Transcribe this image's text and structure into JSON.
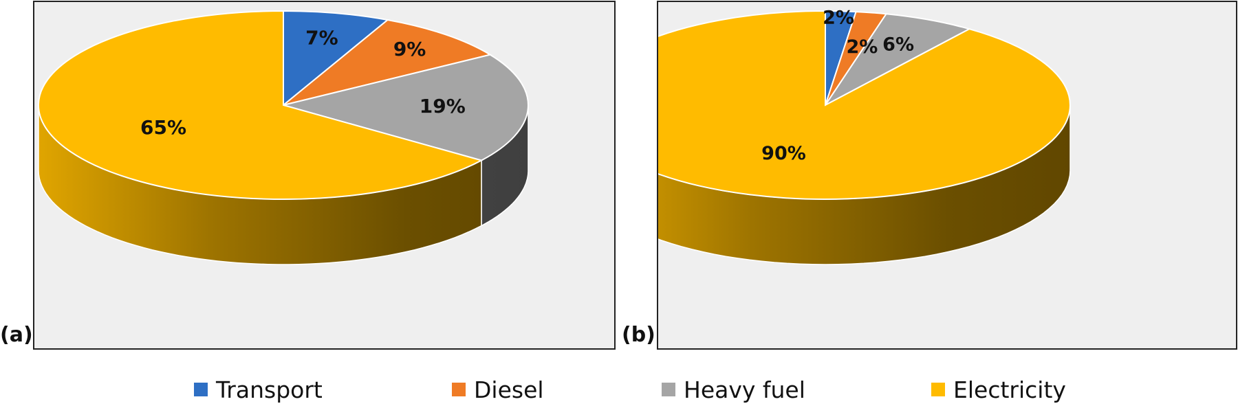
{
  "colors": {
    "Transport": "#2e6fc4",
    "Diesel": "#ef7b25",
    "Heavy fuel": "#a5a5a5",
    "Electricity": "#ffbb00",
    "background": "#efefef"
  },
  "panels": [
    {
      "tag": "(a)"
    },
    {
      "tag": "(b)"
    }
  ],
  "legend": {
    "items": [
      {
        "label": "Transport",
        "color": "#2e6fc4"
      },
      {
        "label": "Diesel",
        "color": "#ef7b25"
      },
      {
        "label": "Heavy fuel",
        "color": "#a5a5a5"
      },
      {
        "label": "Electricity",
        "color": "#ffbb00"
      }
    ],
    "placement": "bottom"
  },
  "chart_data": [
    {
      "type": "pie",
      "style": "3d",
      "panel": "(a)",
      "categories": [
        "Transport",
        "Diesel",
        "Heavy fuel",
        "Electricity"
      ],
      "values": [
        7,
        9,
        19,
        65
      ],
      "data_labels": [
        "7%",
        "9%",
        "19%",
        "65%"
      ],
      "title": ""
    },
    {
      "type": "pie",
      "style": "3d",
      "panel": "(b)",
      "categories": [
        "Transport",
        "Diesel",
        "Heavy fuel",
        "Electricity"
      ],
      "values": [
        2,
        2,
        6,
        90
      ],
      "data_labels": [
        "2%",
        "2%",
        "6%",
        "90%"
      ],
      "title": ""
    }
  ]
}
